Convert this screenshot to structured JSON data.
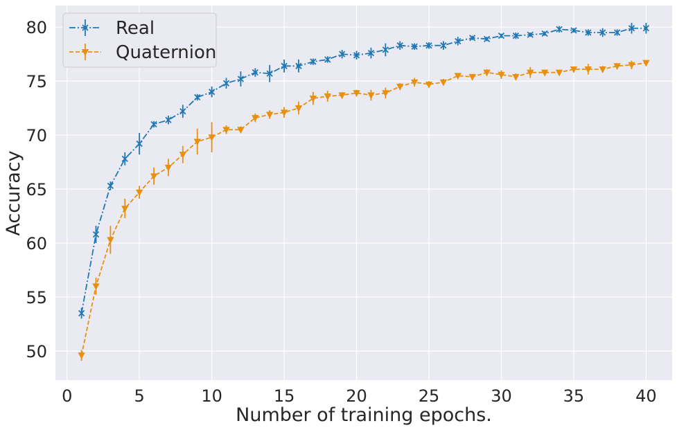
{
  "chart_data": {
    "type": "line",
    "title": "",
    "xlabel": "Number of training epochs.",
    "ylabel": "Accuracy",
    "xlim": [
      -0.8,
      41.8
    ],
    "ylim": [
      47.3,
      82.0
    ],
    "xticks": [
      0,
      5,
      10,
      15,
      20,
      25,
      30,
      35,
      40
    ],
    "xtick_labels": [
      "0",
      "5",
      "10",
      "15",
      "20",
      "25",
      "30",
      "35",
      "40"
    ],
    "yticks": [
      50,
      55,
      60,
      65,
      70,
      75,
      80
    ],
    "ytick_labels": [
      "50",
      "55",
      "60",
      "65",
      "70",
      "75",
      "80"
    ],
    "grid": true,
    "legend_position": "top-left",
    "x": [
      1,
      2,
      3,
      4,
      5,
      6,
      7,
      8,
      9,
      10,
      11,
      12,
      13,
      14,
      15,
      16,
      17,
      18,
      19,
      20,
      21,
      22,
      23,
      24,
      25,
      26,
      27,
      28,
      29,
      30,
      31,
      32,
      33,
      34,
      35,
      36,
      37,
      38,
      39,
      40
    ],
    "series": [
      {
        "name": "Real",
        "color": "#1f77b4",
        "marker": "x",
        "linestyle": "dashdot",
        "values": [
          53.5,
          60.8,
          65.3,
          67.8,
          69.2,
          71.0,
          71.4,
          72.2,
          73.5,
          74.0,
          74.8,
          75.2,
          75.8,
          75.7,
          76.4,
          76.4,
          76.8,
          77.0,
          77.5,
          77.4,
          77.6,
          77.9,
          78.3,
          78.2,
          78.3,
          78.3,
          78.7,
          79.0,
          78.9,
          79.2,
          79.2,
          79.3,
          79.4,
          79.8,
          79.7,
          79.5,
          79.5,
          79.5,
          79.9,
          79.9
        ],
        "errors": [
          0.5,
          0.8,
          0.4,
          0.6,
          1.0,
          0.3,
          0.4,
          0.6,
          0.3,
          0.5,
          0.5,
          0.7,
          0.4,
          0.8,
          0.6,
          0.6,
          0.3,
          0.3,
          0.4,
          0.4,
          0.5,
          0.6,
          0.4,
          0.3,
          0.3,
          0.4,
          0.4,
          0.2,
          0.2,
          0.2,
          0.3,
          0.2,
          0.2,
          0.3,
          0.2,
          0.3,
          0.4,
          0.3,
          0.5,
          0.5
        ]
      },
      {
        "name": "Quaternion",
        "color": "#e8900f",
        "marker": "v",
        "linestyle": "dashed",
        "values": [
          49.6,
          56.0,
          60.3,
          63.2,
          64.7,
          66.2,
          67.0,
          68.2,
          69.4,
          69.8,
          70.5,
          70.5,
          71.6,
          71.9,
          72.1,
          72.5,
          73.4,
          73.6,
          73.7,
          73.9,
          73.7,
          73.9,
          74.5,
          74.9,
          74.7,
          74.9,
          75.5,
          75.4,
          75.8,
          75.6,
          75.4,
          75.8,
          75.8,
          75.8,
          76.1,
          76.1,
          76.1,
          76.4,
          76.5,
          76.7
        ],
        "errors": [
          0.5,
          0.8,
          1.3,
          0.9,
          0.6,
          0.8,
          0.8,
          0.8,
          1.2,
          1.4,
          0.4,
          0.3,
          0.4,
          0.4,
          0.5,
          0.6,
          0.6,
          0.5,
          0.2,
          0.3,
          0.5,
          0.5,
          0.3,
          0.4,
          0.3,
          0.3,
          0.2,
          0.2,
          0.3,
          0.4,
          0.3,
          0.5,
          0.2,
          0.2,
          0.2,
          0.5,
          0.3,
          0.2,
          0.4,
          0.2
        ]
      }
    ]
  }
}
